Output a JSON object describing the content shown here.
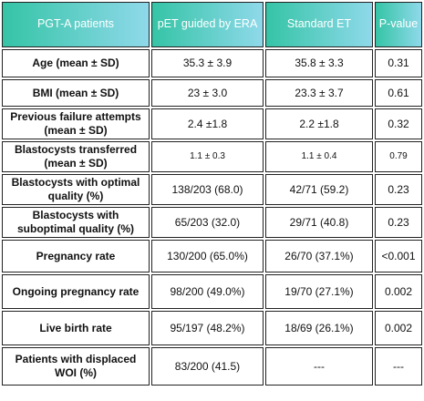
{
  "table": {
    "header": [
      "PGT-A patients",
      "pET guided by ERA",
      "Standard ET",
      "P-value"
    ],
    "rows": [
      [
        "Age (mean ± SD)",
        "35.3 ± 3.9",
        "35.8 ± 3.3",
        "0.31"
      ],
      [
        "BMI (mean ± SD)",
        "23 ± 3.0",
        "23.3 ± 3.7",
        "0.61"
      ],
      [
        "Previous failure attempts (mean ± SD)",
        "2.4 ±1.8",
        "2.2 ±1.8",
        "0.32"
      ],
      [
        "Blastocysts transferred (mean ± SD)",
        "1.1 ± 0.3",
        "1.1 ± 0.4",
        "0.79"
      ],
      [
        "Blastocysts with optimal quality (%)",
        "138/203 (68.0)",
        "42/71 (59.2)",
        "0.23"
      ],
      [
        "Blastocysts with suboptimal quality (%)",
        "65/203 (32.0)",
        "29/71 (40.8)",
        "0.23"
      ],
      [
        "Pregnancy rate",
        "130/200 (65.0%)",
        "26/70 (37.1%)",
        "<0.001"
      ],
      [
        "Ongoing pregnancy rate",
        "98/200 (49.0%)",
        "19/70 (27.1%)",
        "0.002"
      ],
      [
        "Live birth rate",
        "95/197 (48.2%)",
        "18/69 (26.1%)",
        "0.002"
      ],
      [
        "Patients with displaced WOI (%)",
        "83/200 (41.5)",
        "---",
        "---"
      ]
    ]
  }
}
